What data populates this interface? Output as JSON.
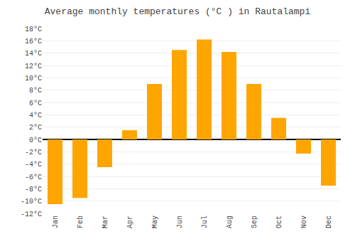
{
  "chart_data": {
    "type": "bar",
    "title": "Average monthly temperatures (°C ) in Rautalampi",
    "categories": [
      "Jan",
      "Feb",
      "Mar",
      "Apr",
      "May",
      "Jun",
      "Jul",
      "Aug",
      "Sep",
      "Oct",
      "Nov",
      "Dec"
    ],
    "values": [
      -10.5,
      -9.5,
      -4.5,
      1.5,
      9.0,
      14.5,
      16.2,
      14.2,
      9.0,
      3.5,
      -2.3,
      -7.5
    ],
    "color": "#FFA500",
    "ylim": [
      -12,
      18
    ],
    "yticks": [
      {
        "value": -12,
        "label": "-12°C"
      },
      {
        "value": -10,
        "label": "-10°C"
      },
      {
        "value": -8,
        "label": "-8°C"
      },
      {
        "value": -6,
        "label": "-6°C"
      },
      {
        "value": -4,
        "label": "-4°C"
      },
      {
        "value": -2,
        "label": "-2°C"
      },
      {
        "value": 0,
        "label": "0°C"
      },
      {
        "value": 2,
        "label": "2°C"
      },
      {
        "value": 4,
        "label": "4°C"
      },
      {
        "value": 6,
        "label": "6°C"
      },
      {
        "value": 8,
        "label": "8°C"
      },
      {
        "value": 10,
        "label": "10°C"
      },
      {
        "value": 12,
        "label": "12°C"
      },
      {
        "value": 14,
        "label": "14°C"
      },
      {
        "value": 16,
        "label": "16°C"
      },
      {
        "value": 18,
        "label": "18°C"
      }
    ],
    "grid": true
  }
}
